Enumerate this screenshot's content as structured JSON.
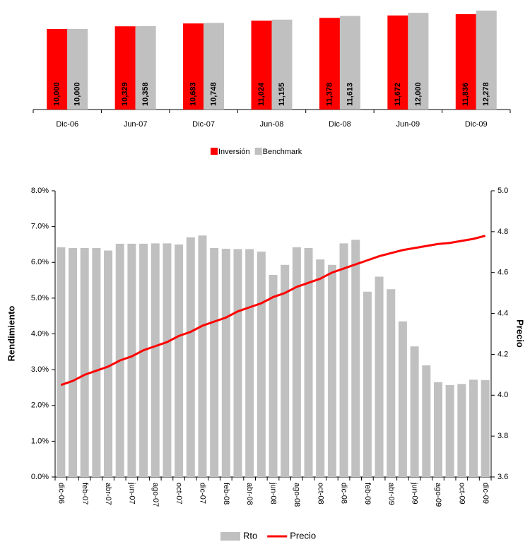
{
  "chart_data": [
    {
      "type": "grouped_bar",
      "categories": [
        "Dic-06",
        "Jun-07",
        "Dic-07",
        "Jun-08",
        "Dic-08",
        "Jun-09",
        "Dic-09"
      ],
      "series": [
        {
          "name": "Inversión",
          "color": "#ff0000",
          "values": [
            10000,
            10329,
            10683,
            11024,
            11378,
            11672,
            11836
          ],
          "value_labels": [
            "10,000",
            "10,329",
            "10,683",
            "11,024",
            "11,378",
            "11,672",
            "11,836"
          ]
        },
        {
          "name": "Benchmark",
          "color": "#c0c0c0",
          "values": [
            10000,
            10358,
            10748,
            11155,
            11613,
            12000,
            12278
          ],
          "value_labels": [
            "10,000",
            "10,358",
            "10,748",
            "11,155",
            "11,613",
            "12,000",
            "12,278"
          ]
        }
      ]
    },
    {
      "type": "bar_line",
      "ylabel": "Rendimiento",
      "y2label": "Precio",
      "categories": [
        "dic-06",
        null,
        "feb-07",
        null,
        "abr-07",
        null,
        "jun-07",
        null,
        "ago-07",
        null,
        "oct-07",
        null,
        "dic-07",
        null,
        "feb-08",
        null,
        "abr-08",
        null,
        "jun-08",
        null,
        "ago-08",
        null,
        "oct-08",
        null,
        "dic-08",
        null,
        "feb-09",
        null,
        "abr-09",
        null,
        "jun-09",
        null,
        "ago-09",
        null,
        "oct-09",
        null,
        "dic-09"
      ],
      "series": [
        {
          "name": "Rto",
          "color": "#c0c0c0",
          "kind": "bar",
          "values": [
            6.42,
            6.4,
            6.4,
            6.4,
            6.33,
            6.52,
            6.52,
            6.52,
            6.53,
            6.53,
            6.5,
            6.7,
            6.75,
            6.4,
            6.38,
            6.37,
            6.37,
            6.3,
            5.65,
            5.93,
            6.42,
            6.4,
            6.08,
            5.93,
            6.53,
            6.63,
            5.18,
            5.6,
            5.25,
            4.35,
            3.65,
            3.12,
            2.65,
            2.57,
            2.6,
            2.72,
            2.71
          ]
        },
        {
          "name": "Precio",
          "color": "#ff0000",
          "kind": "line",
          "axis": "y2",
          "values": [
            4.05,
            4.07,
            4.1,
            4.12,
            4.14,
            4.17,
            4.19,
            4.22,
            4.24,
            4.26,
            4.29,
            4.31,
            4.34,
            4.36,
            4.38,
            4.41,
            4.43,
            4.45,
            4.48,
            4.5,
            4.53,
            4.55,
            4.57,
            4.6,
            4.62,
            4.64,
            4.66,
            4.68,
            4.695,
            4.71,
            4.72,
            4.73,
            4.74,
            4.745,
            4.755,
            4.765,
            4.78
          ]
        }
      ],
      "ylim": [
        0,
        8
      ],
      "yticks": [
        {
          "value": 0,
          "label": "0.0%"
        },
        {
          "value": 1,
          "label": "1.0%"
        },
        {
          "value": 2,
          "label": "2.0%"
        },
        {
          "value": 3,
          "label": "3.0%"
        },
        {
          "value": 4,
          "label": "4.0%"
        },
        {
          "value": 5,
          "label": "5.0%"
        },
        {
          "value": 6,
          "label": "6.0%"
        },
        {
          "value": 7,
          "label": "7.0%"
        },
        {
          "value": 8,
          "label": "8.0%"
        }
      ],
      "y2lim": [
        3.6,
        5
      ],
      "y2ticks": [
        3.6,
        3.8,
        {
          "value": 4,
          "label": "4.0"
        },
        4.2,
        4.4,
        4.6,
        4.8,
        {
          "value": 5,
          "label": "5.0"
        }
      ]
    }
  ]
}
